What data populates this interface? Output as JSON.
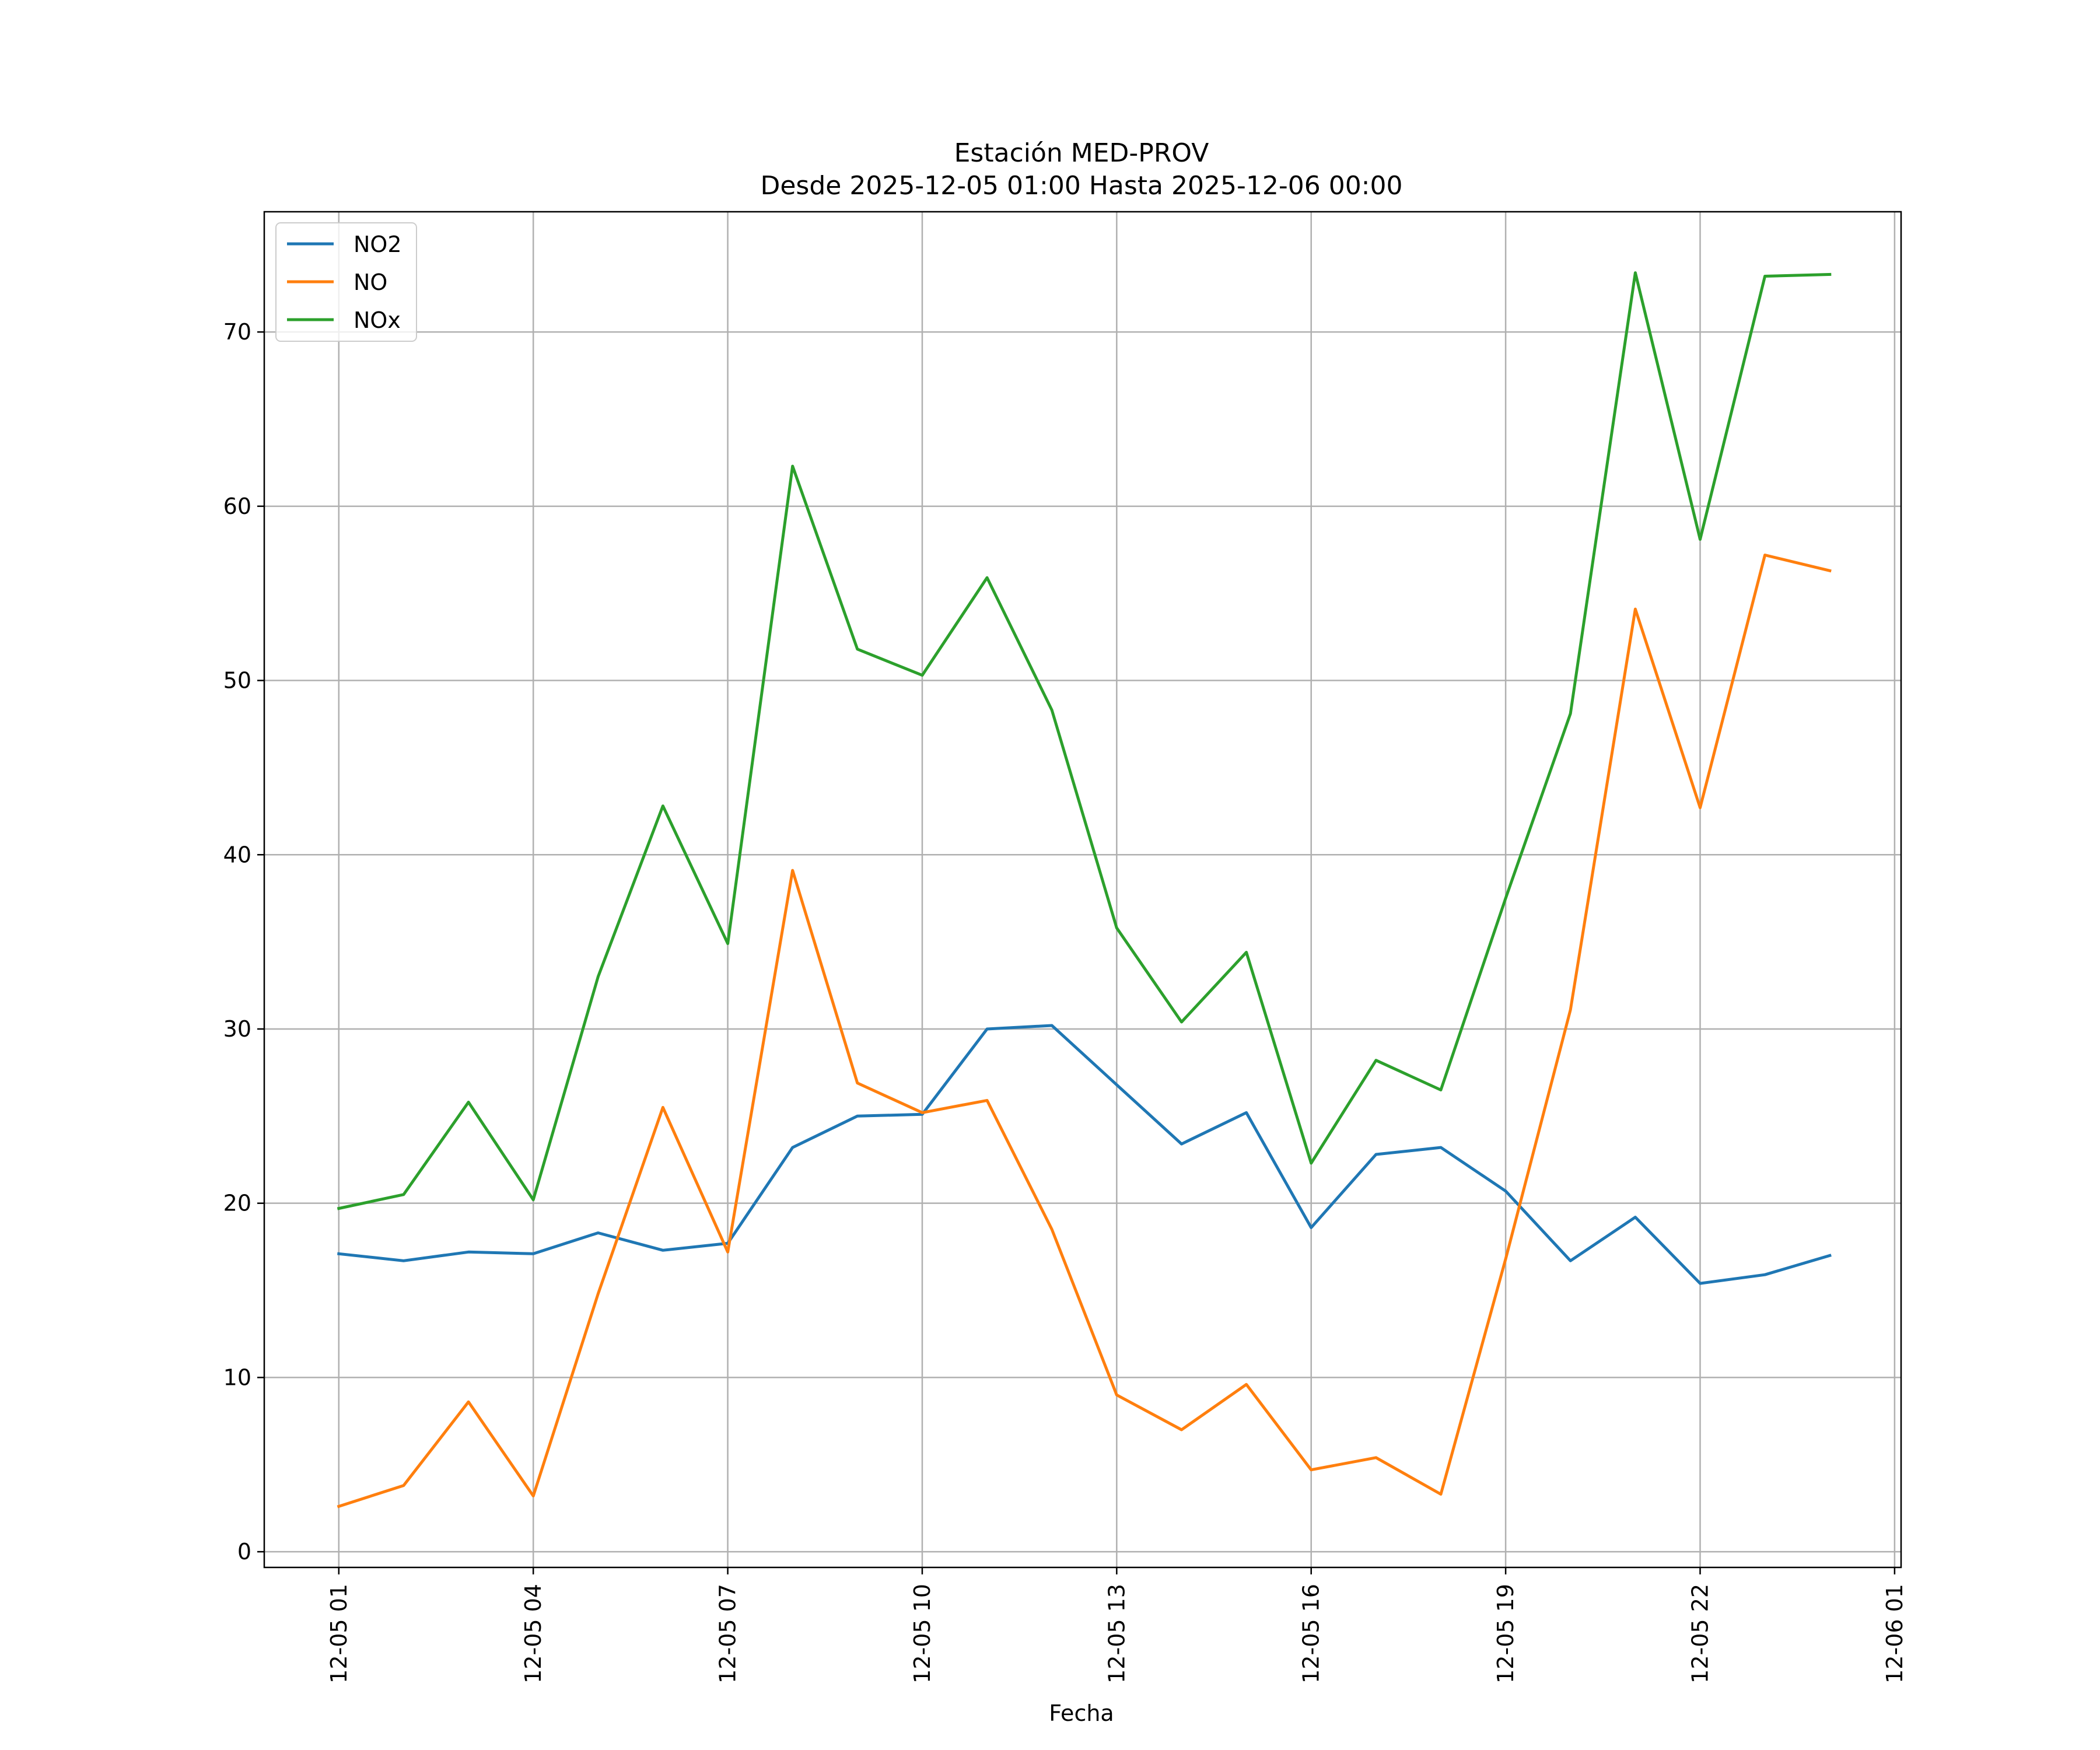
{
  "chart_data": {
    "type": "line",
    "title_lines": [
      "Estación MED-PROV",
      "Desde 2025-12-05 01:00 Hasta 2025-12-06 00:00"
    ],
    "xlabel": "Fecha",
    "ylabel": "",
    "x": [
      "12-05 01:00",
      "12-05 02:00",
      "12-05 03:00",
      "12-05 04:00",
      "12-05 05:00",
      "12-05 06:00",
      "12-05 07:00",
      "12-05 08:00",
      "12-05 09:00",
      "12-05 10:00",
      "12-05 11:00",
      "12-05 12:00",
      "12-05 13:00",
      "12-05 14:00",
      "12-05 15:00",
      "12-05 16:00",
      "12-05 17:00",
      "12-05 18:00",
      "12-05 19:00",
      "12-05 20:00",
      "12-05 21:00",
      "12-05 22:00",
      "12-05 23:00",
      "12-06 00:00"
    ],
    "series": [
      {
        "name": "NO2",
        "color": "#1f77b4",
        "values": [
          17.1,
          16.7,
          17.2,
          17.1,
          18.3,
          17.3,
          17.7,
          23.2,
          25.0,
          25.1,
          30.0,
          30.2,
          26.8,
          23.4,
          25.2,
          18.6,
          22.8,
          23.2,
          20.7,
          16.7,
          19.2,
          15.4,
          15.9,
          17.0
        ]
      },
      {
        "name": "NO",
        "color": "#ff7f0e",
        "values": [
          2.6,
          3.8,
          8.6,
          3.2,
          14.8,
          25.5,
          17.2,
          39.1,
          26.9,
          25.2,
          25.9,
          18.5,
          9.0,
          7.0,
          9.6,
          4.7,
          5.4,
          3.3,
          16.8,
          31.1,
          54.1,
          42.7,
          57.2,
          56.3
        ]
      },
      {
        "name": "NOx",
        "color": "#2ca02c",
        "values": [
          19.7,
          20.5,
          25.8,
          20.2,
          33.0,
          42.8,
          34.9,
          62.3,
          51.8,
          50.3,
          55.9,
          48.3,
          35.8,
          30.4,
          34.4,
          22.3,
          28.2,
          26.5,
          37.5,
          48.1,
          73.4,
          58.1,
          73.2,
          73.3
        ]
      }
    ],
    "xticks": [
      "12-05 01",
      "12-05 04",
      "12-05 07",
      "12-05 10",
      "12-05 13",
      "12-05 16",
      "12-05 19",
      "12-05 22",
      "12-06 01"
    ],
    "xticks_hours": [
      0,
      3,
      6,
      9,
      12,
      15,
      18,
      21,
      24
    ],
    "xlim_hours": [
      -1.15,
      24.1
    ],
    "yticks": [
      "0",
      "10",
      "20",
      "30",
      "40",
      "50",
      "60",
      "70"
    ],
    "ytick_values": [
      0,
      10,
      20,
      30,
      40,
      50,
      60,
      70
    ],
    "ylim": [
      -0.9,
      76.9
    ],
    "grid": true,
    "legend_position": "top-left"
  }
}
